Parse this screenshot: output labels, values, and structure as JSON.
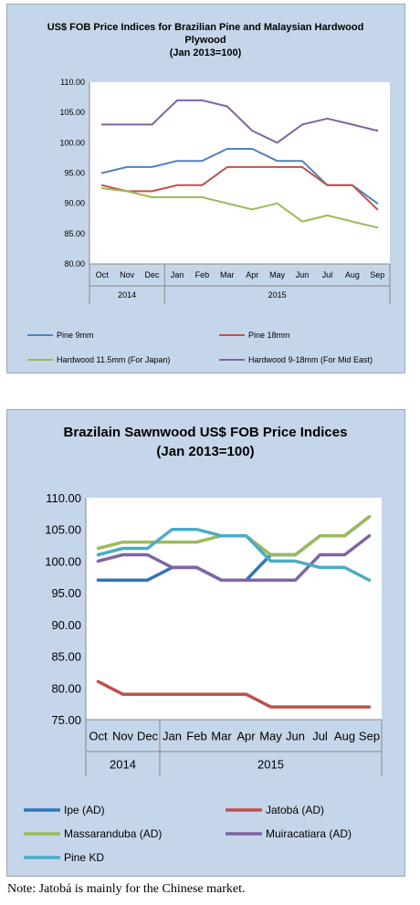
{
  "chart_data": [
    {
      "type": "line",
      "title_lines": [
        "US$ FOB Price Indices for Brazilian Pine and Malaysian Hardwood",
        "Plywood",
        "(Jan 2013=100)"
      ],
      "categories": [
        "Oct",
        "Nov",
        "Dec",
        "Jan",
        "Feb",
        "Mar",
        "Apr",
        "May",
        "Jun",
        "Jul",
        "Aug",
        "Sep"
      ],
      "year_groups": [
        {
          "label": "2014",
          "start": 0,
          "end": 2
        },
        {
          "label": "2015",
          "start": 3,
          "end": 11
        }
      ],
      "ylim": [
        80,
        110
      ],
      "yticks": [
        "80.00",
        "85.00",
        "90.00",
        "95.00",
        "100.00",
        "105.00",
        "110.00"
      ],
      "legend_position": "bottom",
      "series": [
        {
          "name": "Pine 9mm",
          "color": "#4f81bd",
          "values": [
            95,
            96,
            96,
            97,
            97,
            99,
            99,
            97,
            97,
            93,
            93,
            90
          ]
        },
        {
          "name": "Pine 18mm",
          "color": "#c0504d",
          "values": [
            93,
            92,
            92,
            93,
            93,
            96,
            96,
            96,
            96,
            93,
            93,
            89
          ]
        },
        {
          "name": "Hardwood 11.5mm (For Japan)",
          "color": "#9bbb59",
          "values": [
            92.5,
            92,
            91,
            91,
            91,
            90,
            89,
            90,
            87,
            88,
            87,
            86
          ]
        },
        {
          "name": "Hardwood 9-18mm (For Mid East)",
          "color": "#8064a2",
          "values": [
            103,
            103,
            103,
            107,
            107,
            106,
            102,
            100,
            103,
            104,
            103,
            102
          ]
        }
      ]
    },
    {
      "type": "line",
      "title_lines": [
        "Brazilain Sawnwood US$ FOB Price Indices",
        "(Jan 2013=100)"
      ],
      "categories": [
        "Oct",
        "Nov",
        "Dec",
        "Jan",
        "Feb",
        "Mar",
        "Apr",
        "May",
        "Jun",
        "Jul",
        "Aug",
        "Sep"
      ],
      "year_groups": [
        {
          "label": "2014",
          "start": 0,
          "end": 2
        },
        {
          "label": "2015",
          "start": 3,
          "end": 11
        }
      ],
      "ylim": [
        75,
        110
      ],
      "yticks": [
        "75.00",
        "80.00",
        "85.00",
        "90.00",
        "95.00",
        "100.00",
        "105.00",
        "110.00"
      ],
      "legend_position": "bottom",
      "series": [
        {
          "name": "Ipe (AD)",
          "color": "#2e75b6",
          "values": [
            97,
            97,
            97,
            99,
            99,
            97,
            97,
            101,
            101,
            104,
            104,
            107
          ]
        },
        {
          "name": "Jatobá (AD)",
          "color": "#c0504d",
          "values": [
            81,
            79,
            79,
            79,
            79,
            79,
            79,
            77,
            77,
            77,
            77,
            77
          ]
        },
        {
          "name": "Massaranduba (AD)",
          "color": "#9bbb59",
          "values": [
            102,
            103,
            103,
            103,
            103,
            104,
            104,
            101,
            101,
            104,
            104,
            107
          ]
        },
        {
          "name": "Muiracatiara (AD)",
          "color": "#8064a2",
          "values": [
            100,
            101,
            101,
            99,
            99,
            97,
            97,
            97,
            97,
            101,
            101,
            104
          ]
        },
        {
          "name": "Pine KD",
          "color": "#4bacc6",
          "values": [
            101,
            102,
            102,
            105,
            105,
            104,
            104,
            100,
            100,
            99,
            99,
            97
          ]
        }
      ]
    }
  ],
  "note": "Note: Jatobá is mainly for the Chinese market."
}
